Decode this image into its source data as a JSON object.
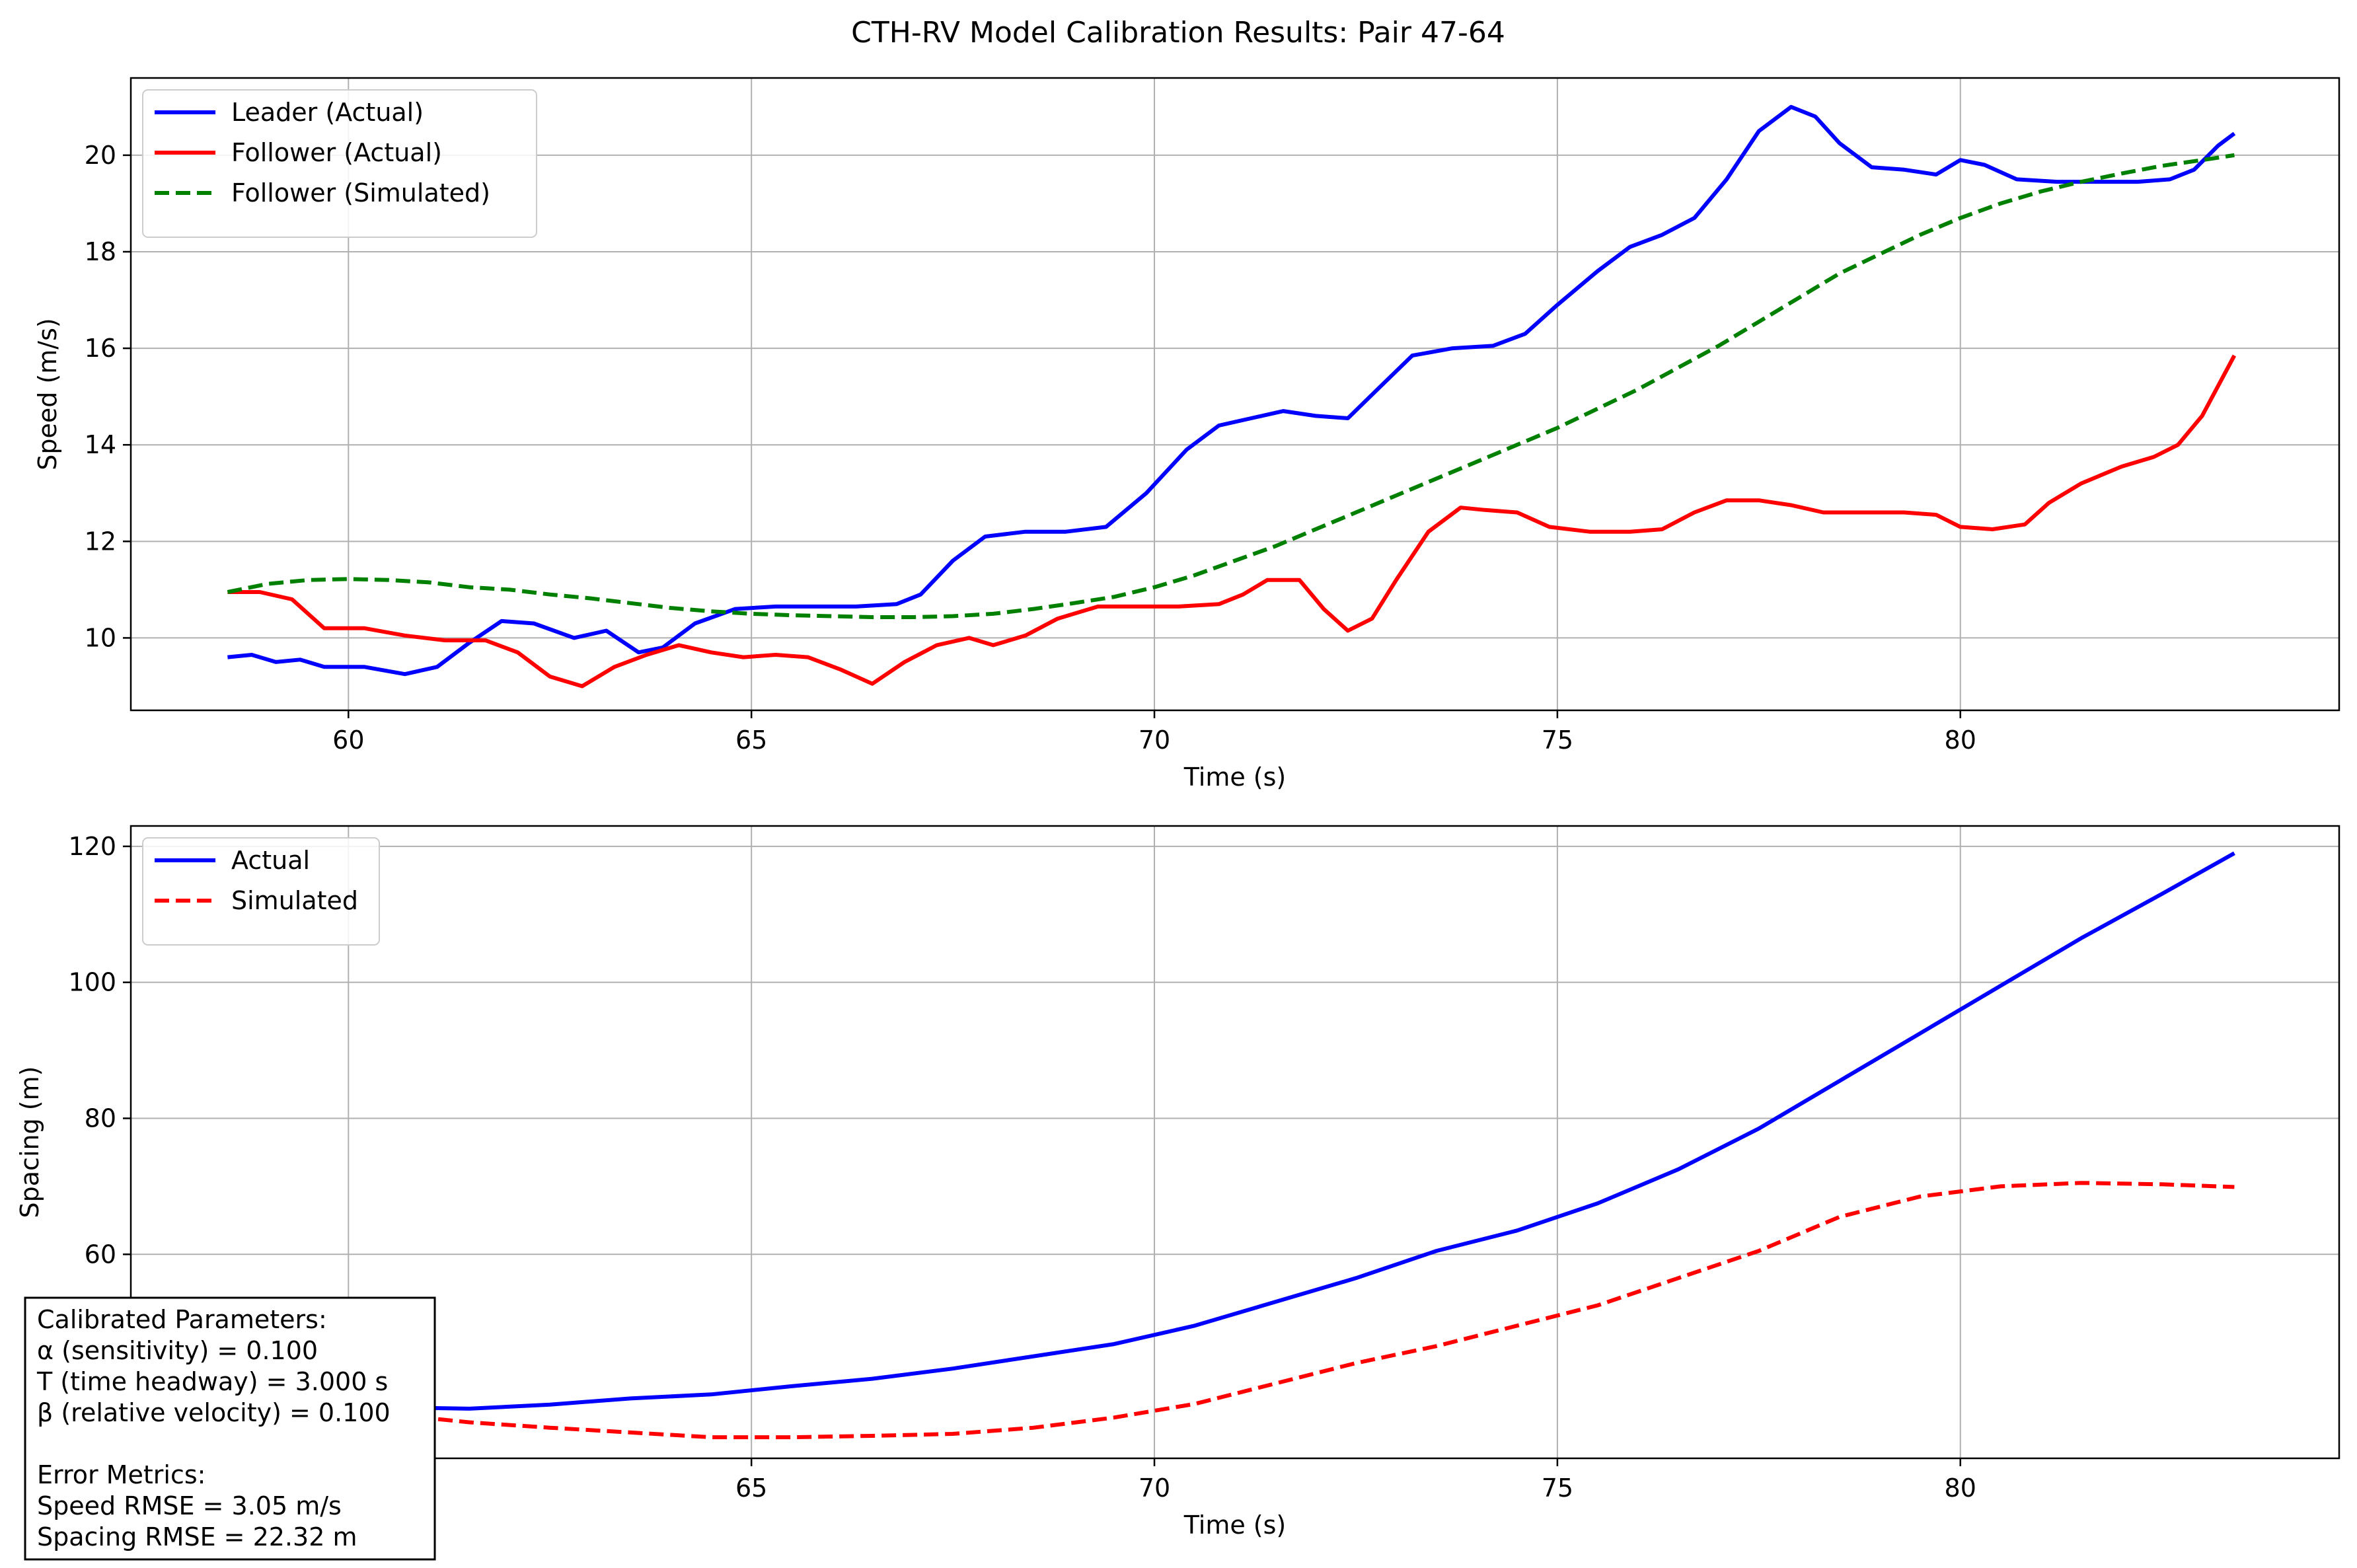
{
  "figure": {
    "title": "CTH-RV Model Calibration Results: Pair 47-64"
  },
  "params_box": {
    "lines": [
      "Calibrated Parameters:",
      "α (sensitivity) = 0.100",
      "T (time headway) = 3.000 s",
      "β (relative velocity) = 0.100",
      "",
      "Error Metrics:",
      "Speed RMSE = 3.05 m/s",
      "Spacing RMSE = 22.32 m"
    ]
  },
  "chart_data": [
    {
      "type": "line",
      "xlabel": "Time (s)",
      "ylabel": "Speed (m/s)",
      "xlim": [
        57.3,
        84.7
      ],
      "ylim": [
        8.5,
        21.6
      ],
      "xticks": [
        60,
        65,
        70,
        75,
        80
      ],
      "yticks": [
        10,
        12,
        14,
        16,
        18,
        20
      ],
      "grid": true,
      "legend_position": "upper-left",
      "series": [
        {
          "name": "Leader (Actual)",
          "color": "#0000ff",
          "style": "solid",
          "points": [
            [
              58.5,
              9.6
            ],
            [
              58.8,
              9.65
            ],
            [
              59.1,
              9.5
            ],
            [
              59.4,
              9.55
            ],
            [
              59.7,
              9.4
            ],
            [
              60.2,
              9.4
            ],
            [
              60.7,
              9.25
            ],
            [
              61.1,
              9.4
            ],
            [
              61.5,
              9.9
            ],
            [
              61.9,
              10.35
            ],
            [
              62.3,
              10.3
            ],
            [
              62.8,
              10.0
            ],
            [
              63.2,
              10.15
            ],
            [
              63.6,
              9.7
            ],
            [
              63.9,
              9.8
            ],
            [
              64.3,
              10.3
            ],
            [
              64.8,
              10.6
            ],
            [
              65.3,
              10.65
            ],
            [
              65.8,
              10.65
            ],
            [
              66.3,
              10.65
            ],
            [
              66.8,
              10.7
            ],
            [
              67.1,
              10.9
            ],
            [
              67.5,
              11.6
            ],
            [
              67.9,
              12.1
            ],
            [
              68.4,
              12.2
            ],
            [
              68.9,
              12.2
            ],
            [
              69.4,
              12.3
            ],
            [
              69.9,
              13.0
            ],
            [
              70.4,
              13.9
            ],
            [
              70.8,
              14.4
            ],
            [
              71.2,
              14.55
            ],
            [
              71.6,
              14.7
            ],
            [
              72.0,
              14.6
            ],
            [
              72.4,
              14.55
            ],
            [
              72.8,
              15.2
            ],
            [
              73.2,
              15.85
            ],
            [
              73.7,
              16.0
            ],
            [
              74.2,
              16.05
            ],
            [
              74.6,
              16.3
            ],
            [
              75.0,
              16.9
            ],
            [
              75.5,
              17.6
            ],
            [
              75.9,
              18.1
            ],
            [
              76.3,
              18.35
            ],
            [
              76.7,
              18.7
            ],
            [
              77.1,
              19.5
            ],
            [
              77.5,
              20.5
            ],
            [
              77.9,
              21.0
            ],
            [
              78.2,
              20.8
            ],
            [
              78.5,
              20.25
            ],
            [
              78.9,
              19.75
            ],
            [
              79.3,
              19.7
            ],
            [
              79.7,
              19.6
            ],
            [
              80.0,
              19.9
            ],
            [
              80.3,
              19.8
            ],
            [
              80.7,
              19.5
            ],
            [
              81.2,
              19.45
            ],
            [
              81.7,
              19.45
            ],
            [
              82.2,
              19.45
            ],
            [
              82.6,
              19.5
            ],
            [
              82.9,
              19.7
            ],
            [
              83.2,
              20.2
            ],
            [
              83.4,
              20.45
            ]
          ]
        },
        {
          "name": "Follower (Actual)",
          "color": "#ff0000",
          "style": "solid",
          "points": [
            [
              58.5,
              10.95
            ],
            [
              58.9,
              10.95
            ],
            [
              59.3,
              10.8
            ],
            [
              59.7,
              10.2
            ],
            [
              60.2,
              10.2
            ],
            [
              60.7,
              10.05
            ],
            [
              61.2,
              9.95
            ],
            [
              61.7,
              9.95
            ],
            [
              62.1,
              9.7
            ],
            [
              62.5,
              9.2
            ],
            [
              62.9,
              9.0
            ],
            [
              63.3,
              9.4
            ],
            [
              63.7,
              9.65
            ],
            [
              64.1,
              9.85
            ],
            [
              64.5,
              9.7
            ],
            [
              64.9,
              9.6
            ],
            [
              65.3,
              9.65
            ],
            [
              65.7,
              9.6
            ],
            [
              66.1,
              9.35
            ],
            [
              66.5,
              9.05
            ],
            [
              66.9,
              9.5
            ],
            [
              67.3,
              9.85
            ],
            [
              67.7,
              10.0
            ],
            [
              68.0,
              9.85
            ],
            [
              68.4,
              10.05
            ],
            [
              68.8,
              10.4
            ],
            [
              69.3,
              10.65
            ],
            [
              69.8,
              10.65
            ],
            [
              70.3,
              10.65
            ],
            [
              70.8,
              10.7
            ],
            [
              71.1,
              10.9
            ],
            [
              71.4,
              11.2
            ],
            [
              71.8,
              11.2
            ],
            [
              72.1,
              10.6
            ],
            [
              72.4,
              10.15
            ],
            [
              72.7,
              10.4
            ],
            [
              73.0,
              11.2
            ],
            [
              73.4,
              12.2
            ],
            [
              73.8,
              12.7
            ],
            [
              74.1,
              12.65
            ],
            [
              74.5,
              12.6
            ],
            [
              74.9,
              12.3
            ],
            [
              75.4,
              12.2
            ],
            [
              75.9,
              12.2
            ],
            [
              76.3,
              12.25
            ],
            [
              76.7,
              12.6
            ],
            [
              77.1,
              12.85
            ],
            [
              77.5,
              12.85
            ],
            [
              77.9,
              12.75
            ],
            [
              78.3,
              12.6
            ],
            [
              78.8,
              12.6
            ],
            [
              79.3,
              12.6
            ],
            [
              79.7,
              12.55
            ],
            [
              80.0,
              12.3
            ],
            [
              80.4,
              12.25
            ],
            [
              80.8,
              12.35
            ],
            [
              81.1,
              12.8
            ],
            [
              81.5,
              13.2
            ],
            [
              82.0,
              13.55
            ],
            [
              82.4,
              13.75
            ],
            [
              82.7,
              14.0
            ],
            [
              83.0,
              14.6
            ],
            [
              83.4,
              15.85
            ]
          ]
        },
        {
          "name": "Follower (Simulated)",
          "color": "#008000",
          "style": "dashed",
          "points": [
            [
              58.5,
              10.95
            ],
            [
              59.0,
              11.12
            ],
            [
              59.5,
              11.2
            ],
            [
              60.0,
              11.22
            ],
            [
              60.5,
              11.2
            ],
            [
              61.0,
              11.15
            ],
            [
              61.5,
              11.05
            ],
            [
              62.0,
              11.0
            ],
            [
              62.5,
              10.9
            ],
            [
              63.0,
              10.82
            ],
            [
              63.5,
              10.72
            ],
            [
              64.0,
              10.62
            ],
            [
              64.5,
              10.55
            ],
            [
              65.0,
              10.5
            ],
            [
              65.5,
              10.47
            ],
            [
              66.0,
              10.45
            ],
            [
              66.5,
              10.43
            ],
            [
              67.0,
              10.43
            ],
            [
              67.5,
              10.45
            ],
            [
              68.0,
              10.5
            ],
            [
              68.5,
              10.6
            ],
            [
              69.0,
              10.72
            ],
            [
              69.5,
              10.85
            ],
            [
              70.0,
              11.05
            ],
            [
              70.5,
              11.3
            ],
            [
              71.0,
              11.6
            ],
            [
              71.5,
              11.9
            ],
            [
              72.0,
              12.25
            ],
            [
              72.5,
              12.6
            ],
            [
              73.0,
              12.95
            ],
            [
              73.5,
              13.3
            ],
            [
              74.0,
              13.65
            ],
            [
              74.5,
              14.0
            ],
            [
              75.0,
              14.35
            ],
            [
              75.5,
              14.75
            ],
            [
              76.0,
              15.15
            ],
            [
              76.5,
              15.6
            ],
            [
              77.0,
              16.05
            ],
            [
              77.5,
              16.55
            ],
            [
              78.0,
              17.05
            ],
            [
              78.5,
              17.55
            ],
            [
              79.0,
              17.95
            ],
            [
              79.5,
              18.35
            ],
            [
              80.0,
              18.7
            ],
            [
              80.5,
              19.0
            ],
            [
              81.0,
              19.25
            ],
            [
              81.5,
              19.45
            ],
            [
              82.0,
              19.62
            ],
            [
              82.5,
              19.78
            ],
            [
              83.0,
              19.9
            ],
            [
              83.4,
              20.0
            ]
          ]
        }
      ]
    },
    {
      "type": "line",
      "xlabel": "Time (s)",
      "ylabel": "Spacing (m)",
      "xlim": [
        57.3,
        84.7
      ],
      "ylim": [
        30,
        123
      ],
      "xticks": [
        60,
        65,
        70,
        75,
        80
      ],
      "yticks": [
        60,
        80,
        100,
        120
      ],
      "grid": true,
      "legend_position": "upper-left",
      "series": [
        {
          "name": "Actual",
          "color": "#0000ff",
          "style": "solid",
          "points": [
            [
              58.5,
              38.5
            ],
            [
              59.5,
              38.0
            ],
            [
              60.5,
              37.5
            ],
            [
              61.5,
              37.3
            ],
            [
              62.5,
              37.9
            ],
            [
              63.5,
              38.8
            ],
            [
              64.5,
              39.4
            ],
            [
              65.5,
              40.6
            ],
            [
              66.5,
              41.7
            ],
            [
              67.5,
              43.2
            ],
            [
              68.5,
              45.0
            ],
            [
              69.5,
              46.8
            ],
            [
              70.5,
              49.5
            ],
            [
              71.5,
              53.0
            ],
            [
              72.5,
              56.5
            ],
            [
              73.5,
              60.5
            ],
            [
              74.5,
              63.5
            ],
            [
              75.5,
              67.5
            ],
            [
              76.5,
              72.5
            ],
            [
              77.5,
              78.5
            ],
            [
              78.5,
              85.5
            ],
            [
              79.5,
              92.5
            ],
            [
              80.5,
              99.5
            ],
            [
              81.5,
              106.5
            ],
            [
              82.5,
              113.0
            ],
            [
              83.4,
              119.0
            ]
          ]
        },
        {
          "name": "Simulated",
          "color": "#ff0000",
          "style": "dashed",
          "points": [
            [
              58.5,
              38.5
            ],
            [
              59.5,
              37.7
            ],
            [
              60.5,
              36.5
            ],
            [
              61.5,
              35.3
            ],
            [
              62.5,
              34.5
            ],
            [
              63.5,
              33.8
            ],
            [
              64.5,
              33.1
            ],
            [
              65.5,
              33.1
            ],
            [
              66.5,
              33.3
            ],
            [
              67.5,
              33.6
            ],
            [
              68.5,
              34.5
            ],
            [
              69.5,
              36.0
            ],
            [
              70.5,
              38.0
            ],
            [
              71.5,
              41.0
            ],
            [
              72.5,
              44.0
            ],
            [
              73.5,
              46.5
            ],
            [
              74.5,
              49.5
            ],
            [
              75.5,
              52.5
            ],
            [
              76.5,
              56.5
            ],
            [
              77.5,
              60.5
            ],
            [
              78.5,
              65.5
            ],
            [
              79.5,
              68.5
            ],
            [
              80.5,
              70.0
            ],
            [
              81.5,
              70.5
            ],
            [
              82.5,
              70.3
            ],
            [
              83.4,
              69.9
            ]
          ]
        }
      ]
    }
  ]
}
